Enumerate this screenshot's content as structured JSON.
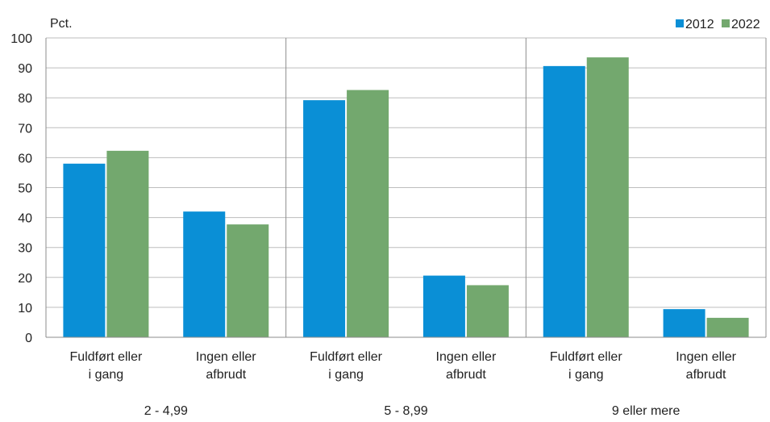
{
  "chart_data": {
    "type": "bar",
    "ylabel": "Pct.",
    "ylim": [
      0,
      100
    ],
    "yticks": [
      0,
      10,
      20,
      30,
      40,
      50,
      60,
      70,
      80,
      90,
      100
    ],
    "grid": true,
    "legend": "top-right",
    "groups": [
      {
        "label": "2 - 4,99",
        "categories": [
          [
            "Fuldført eller",
            "i gang"
          ],
          [
            "Ingen eller",
            "afbrudt"
          ]
        ]
      },
      {
        "label": "5 - 8,99",
        "categories": [
          [
            "Fuldført eller",
            "i gang"
          ],
          [
            "Ingen eller",
            "afbrudt"
          ]
        ]
      },
      {
        "label": "9 eller mere",
        "categories": [
          [
            "Fuldført eller",
            "i gang"
          ],
          [
            "Ingen eller",
            "afbrudt"
          ]
        ]
      }
    ],
    "series": [
      {
        "name": "2012",
        "color": "#0a8fd6",
        "values": [
          58,
          42,
          79.2,
          20.6,
          90.6,
          9.4
        ]
      },
      {
        "name": "2022",
        "color": "#73a86e",
        "values": [
          62.3,
          37.7,
          82.6,
          17.4,
          93.5,
          6.5
        ]
      }
    ]
  }
}
